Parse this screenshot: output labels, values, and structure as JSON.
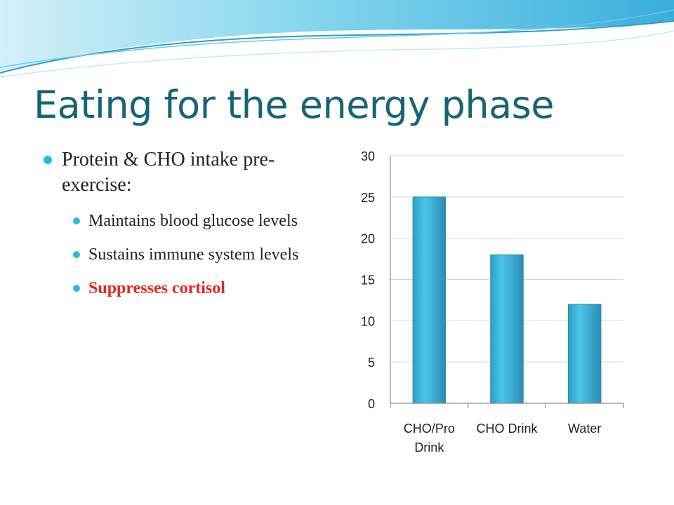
{
  "slide": {
    "title": "Eating for the energy phase",
    "bullets": [
      {
        "text": "Protein & CHO intake pre-exercise:",
        "level": 1
      },
      {
        "text": "Maintains blood glucose levels",
        "level": 2
      },
      {
        "text": "Sustains immune system levels",
        "level": 2
      },
      {
        "text": "Suppresses cortisol",
        "level": 2,
        "color": "#e8231f"
      }
    ],
    "colors": {
      "title": "#176477",
      "bullet_dot": "#2fb8de",
      "bar": "#3bb7dd",
      "highlight": "#e8231f"
    }
  },
  "chart_data": {
    "type": "bar",
    "categories": [
      "CHO/Pro Drink",
      "CHO Drink",
      "Water"
    ],
    "values": [
      25,
      18,
      12
    ],
    "title": "",
    "xlabel": "",
    "ylabel": "",
    "ylim": [
      0,
      30
    ],
    "yticks": [
      0,
      5,
      10,
      15,
      20,
      25,
      30
    ],
    "grid": true,
    "legend": "none"
  }
}
